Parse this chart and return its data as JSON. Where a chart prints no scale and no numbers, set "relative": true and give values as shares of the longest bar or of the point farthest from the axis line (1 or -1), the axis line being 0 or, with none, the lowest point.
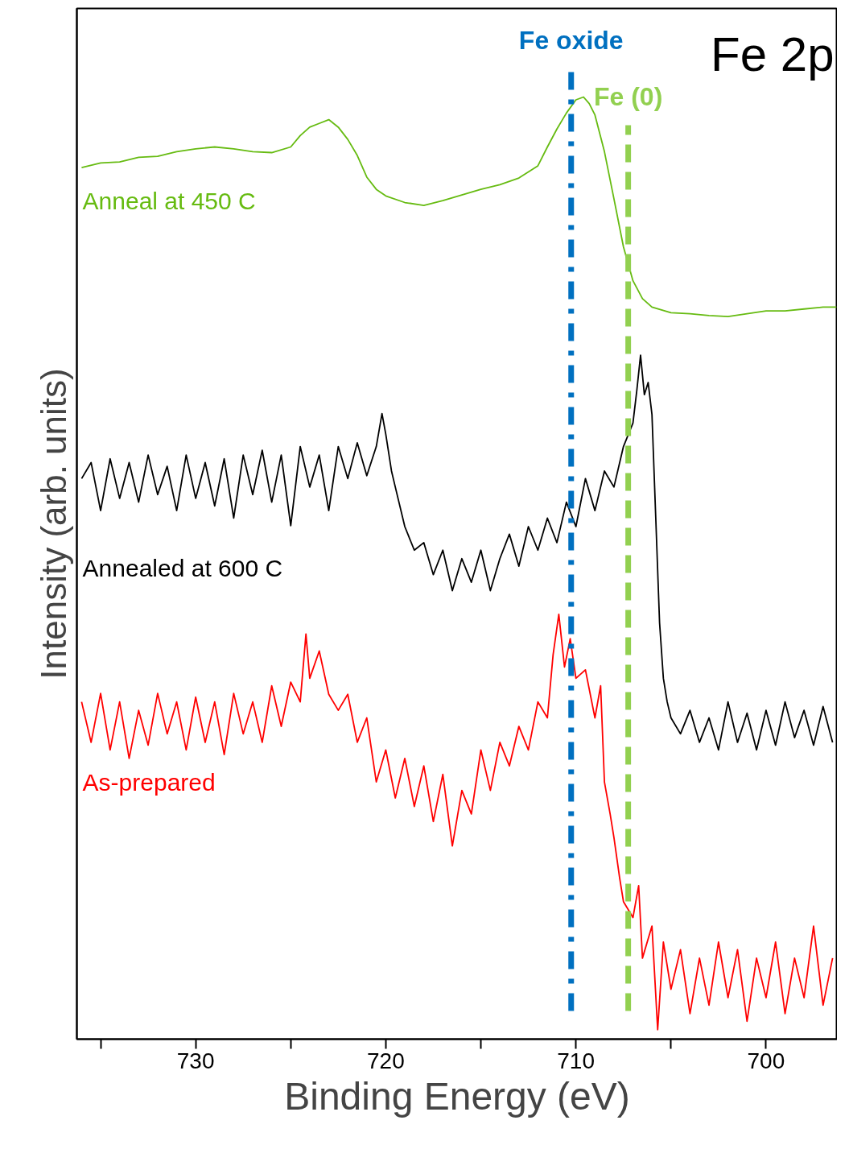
{
  "chart_data": {
    "type": "line",
    "relative": true,
    "xlabel": "Binding Energy (eV)",
    "ylabel": "Intensity (arb. units)",
    "xlim": [
      736.25,
      696.25
    ],
    "xticks": [
      {
        "value": 735,
        "label": null
      },
      730,
      {
        "value": 725,
        "label": null
      },
      720,
      {
        "value": 715,
        "label": null
      },
      710,
      {
        "value": 705,
        "label": null
      },
      700
    ],
    "grid": false,
    "legend": false,
    "tick_labels": "x",
    "line_style": "solid",
    "marker": "none",
    "annotations": [
      "Fe 2p"
    ],
    "ref_lines": [
      {
        "axis": "x",
        "value": 710.25,
        "label": "Fe oxide",
        "color": "#0070c0",
        "line_style": "dashdot"
      },
      {
        "axis": "x",
        "value": 707.25,
        "label": "Fe (0)",
        "color": "#92d050",
        "line_style": "dashed"
      }
    ],
    "series": [
      {
        "name": "Anneal at 450 C",
        "color": "#66bb11",
        "x": [
          736,
          735,
          734,
          733,
          732,
          731,
          730,
          729,
          728,
          727,
          726,
          725,
          724.5,
          724,
          723.5,
          723,
          722.5,
          722,
          721.5,
          721,
          720.5,
          720,
          719,
          718,
          717,
          716,
          715,
          714,
          713,
          712,
          711.5,
          711,
          710.5,
          710,
          709.6,
          709.3,
          709,
          708.5,
          708,
          707.5,
          707,
          706.5,
          706,
          705,
          704,
          703,
          702,
          701,
          700,
          699,
          698,
          697,
          696.3
        ],
        "values": [
          0.925,
          0.93,
          0.931,
          0.936,
          0.937,
          0.942,
          0.945,
          0.947,
          0.945,
          0.942,
          0.941,
          0.947,
          0.959,
          0.968,
          0.972,
          0.976,
          0.968,
          0.955,
          0.938,
          0.915,
          0.902,
          0.895,
          0.888,
          0.885,
          0.89,
          0.896,
          0.902,
          0.907,
          0.914,
          0.927,
          0.947,
          0.966,
          0.983,
          0.997,
          1,
          0.993,
          0.981,
          0.942,
          0.892,
          0.841,
          0.805,
          0.786,
          0.777,
          0.771,
          0.77,
          0.768,
          0.767,
          0.77,
          0.773,
          0.773,
          0.775,
          0.777,
          0.777
        ]
      },
      {
        "name": "Annealed at 600 C",
        "color": "#000000",
        "x": [
          736,
          735.5,
          735,
          734.5,
          734,
          733.5,
          733,
          732.5,
          732,
          731.5,
          731,
          730.5,
          730,
          729.5,
          729,
          728.5,
          728,
          727.5,
          727,
          726.5,
          726,
          725.5,
          725,
          724.5,
          724,
          723.5,
          723,
          722.5,
          722,
          721.5,
          721,
          720.5,
          720.2,
          720,
          719.7,
          719.5,
          719,
          718.5,
          718,
          717.5,
          717,
          716.5,
          716,
          715.5,
          715,
          714.5,
          714,
          713.5,
          713,
          712.5,
          712,
          711.5,
          711,
          710.5,
          710,
          709.5,
          709,
          708.5,
          708,
          707.5,
          707,
          706.8,
          706.6,
          706.4,
          706.2,
          706,
          705.8,
          705.6,
          705.4,
          705.2,
          705,
          704.5,
          704,
          703.5,
          703,
          702.5,
          702,
          701.5,
          701,
          700.5,
          700,
          699.5,
          699,
          698.5,
          698,
          697.5,
          697,
          696.5
        ],
        "values": [
          0.595,
          0.612,
          0.561,
          0.616,
          0.574,
          0.612,
          0.57,
          0.62,
          0.578,
          0.608,
          0.561,
          0.62,
          0.574,
          0.612,
          0.566,
          0.616,
          0.553,
          0.62,
          0.578,
          0.625,
          0.57,
          0.62,
          0.545,
          0.629,
          0.586,
          0.62,
          0.561,
          0.629,
          0.595,
          0.633,
          0.598,
          0.629,
          0.664,
          0.642,
          0.603,
          0.586,
          0.544,
          0.519,
          0.527,
          0.493,
          0.519,
          0.476,
          0.51,
          0.485,
          0.519,
          0.476,
          0.51,
          0.536,
          0.502,
          0.544,
          0.519,
          0.553,
          0.527,
          0.57,
          0.544,
          0.595,
          0.561,
          0.603,
          0.586,
          0.629,
          0.654,
          0.688,
          0.726,
          0.684,
          0.697,
          0.663,
          0.553,
          0.442,
          0.383,
          0.358,
          0.341,
          0.324,
          0.349,
          0.315,
          0.341,
          0.307,
          0.358,
          0.315,
          0.346,
          0.307,
          0.349,
          0.312,
          0.358,
          0.32,
          0.349,
          0.312,
          0.353,
          0.315
        ]
      },
      {
        "name": "As-prepared",
        "color": "#ff0000",
        "x": [
          736,
          735.5,
          735,
          734.5,
          734,
          733.5,
          733,
          732.5,
          732,
          731.5,
          731,
          730.5,
          730,
          729.5,
          729,
          728.5,
          728,
          727.5,
          727,
          726.5,
          726,
          725.5,
          725,
          724.5,
          724.2,
          724,
          723.5,
          723,
          722.5,
          722,
          721.5,
          721,
          720.5,
          720,
          719.5,
          719,
          718.5,
          718,
          717.5,
          717,
          716.5,
          716,
          715.5,
          715,
          714.5,
          714,
          713.5,
          713,
          712.5,
          712,
          711.5,
          711.2,
          710.9,
          710.6,
          710.3,
          710,
          709.5,
          709,
          708.7,
          708.5,
          708.2,
          708,
          707.7,
          707.5,
          707,
          706.7,
          706.5,
          706,
          705.7,
          705.4,
          705,
          704.5,
          704,
          703.5,
          703,
          702.5,
          702,
          701.5,
          701,
          700.5,
          700,
          699.5,
          699,
          698.5,
          698,
          697.5,
          697,
          696.5
        ],
        "values": [
          0.358,
          0.315,
          0.367,
          0.307,
          0.358,
          0.298,
          0.349,
          0.312,
          0.367,
          0.324,
          0.358,
          0.307,
          0.363,
          0.315,
          0.358,
          0.302,
          0.367,
          0.324,
          0.358,
          0.315,
          0.375,
          0.332,
          0.379,
          0.358,
          0.43,
          0.383,
          0.412,
          0.366,
          0.349,
          0.366,
          0.315,
          0.341,
          0.273,
          0.307,
          0.256,
          0.298,
          0.247,
          0.29,
          0.231,
          0.281,
          0.205,
          0.264,
          0.239,
          0.307,
          0.264,
          0.315,
          0.29,
          0.332,
          0.307,
          0.358,
          0.341,
          0.408,
          0.451,
          0.395,
          0.425,
          0.383,
          0.392,
          0.341,
          0.375,
          0.273,
          0.239,
          0.214,
          0.171,
          0.146,
          0.129,
          0.163,
          0.086,
          0.12,
          0.01,
          0.103,
          0.053,
          0.095,
          0.027,
          0.086,
          0.036,
          0.103,
          0.044,
          0.095,
          0.019,
          0.086,
          0.044,
          0.103,
          0.027,
          0.086,
          0.044,
          0.12,
          0.036,
          0.086
        ]
      }
    ]
  }
}
